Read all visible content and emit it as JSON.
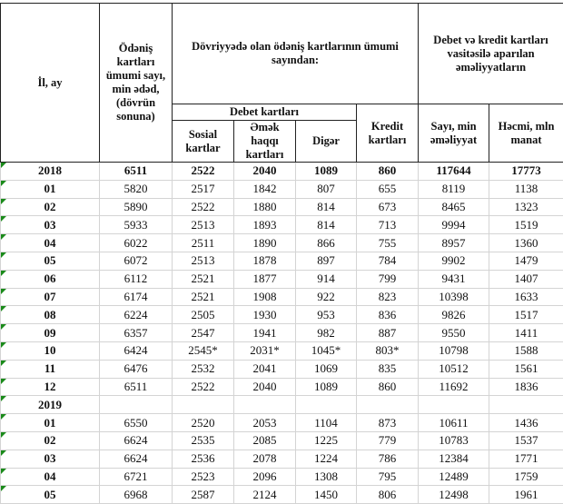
{
  "header": {
    "year_month": "İl, ay",
    "total_cards": "Ödəniş kartları ümumi sayı, min ədəd, (dövrün sonuna)",
    "of_total": "Dövriyyədə olan ödəniş kartlarının ümumi sayından:",
    "operations": "Debet və kredit  kartları vasitəsilə aparılan əməliyyatların",
    "debit_cards": "Debet kartları",
    "social": "Sosial kartlar",
    "salary": "Əmək haqqı kartları",
    "other": "Digər",
    "credit": "Kredit kartları",
    "count": "Sayı, min əməliyyat",
    "volume": "Həcmi, mln manat"
  },
  "rows": [
    {
      "label": "2018",
      "v": [
        "6511",
        "2522",
        "2040",
        "1089",
        "860",
        "117644",
        "17773"
      ],
      "year": true
    },
    {
      "label": "01",
      "v": [
        "5820",
        "2517",
        "1842",
        "807",
        "655",
        "8119",
        "1138"
      ]
    },
    {
      "label": "02",
      "v": [
        "5890",
        "2522",
        "1880",
        "814",
        "673",
        "8465",
        "1323"
      ]
    },
    {
      "label": "03",
      "v": [
        "5933",
        "2513",
        "1893",
        "814",
        "713",
        "9994",
        "1519"
      ]
    },
    {
      "label": "04",
      "v": [
        "6022",
        "2511",
        "1890",
        "866",
        "755",
        "8957",
        "1360"
      ]
    },
    {
      "label": "05",
      "v": [
        "6072",
        "2513",
        "1878",
        "897",
        "784",
        "9902",
        "1479"
      ]
    },
    {
      "label": "06",
      "v": [
        "6112",
        "2521",
        "1877",
        "914",
        "799",
        "9431",
        "1407"
      ]
    },
    {
      "label": "07",
      "v": [
        "6174",
        "2521",
        "1908",
        "922",
        "823",
        "10398",
        "1633"
      ]
    },
    {
      "label": "08",
      "v": [
        "6224",
        "2505",
        "1930",
        "953",
        "836",
        "9826",
        "1517"
      ]
    },
    {
      "label": "09",
      "v": [
        "6357",
        "2547",
        "1941",
        "982",
        "887",
        "9550",
        "1411"
      ]
    },
    {
      "label": "10",
      "v": [
        "6424",
        "2545*",
        "2031*",
        "1045*",
        "803*",
        "10798",
        "1588"
      ]
    },
    {
      "label": "11",
      "v": [
        "6476",
        "2532",
        "2041",
        "1069",
        "835",
        "10512",
        "1561"
      ]
    },
    {
      "label": "12",
      "v": [
        "6511",
        "2522",
        "2040",
        "1089",
        "860",
        "11692",
        "1836"
      ]
    },
    {
      "label": "2019",
      "v": [
        "",
        "",
        "",
        "",
        "",
        "",
        ""
      ],
      "header_only": true
    },
    {
      "label": "01",
      "v": [
        "6550",
        "2520",
        "2053",
        "1104",
        "873",
        "10611",
        "1436"
      ]
    },
    {
      "label": "02",
      "v": [
        "6624",
        "2535",
        "2085",
        "1225",
        "779",
        "10783",
        "1537"
      ]
    },
    {
      "label": "03",
      "v": [
        "6624",
        "2536",
        "2078",
        "1224",
        "786",
        "12384",
        "1771"
      ]
    },
    {
      "label": "04",
      "v": [
        "6721",
        "2523",
        "2096",
        "1308",
        "795",
        "12489",
        "1759"
      ]
    },
    {
      "label": "05",
      "v": [
        "6968",
        "2587",
        "2124",
        "1450",
        "806",
        "12498",
        "1961"
      ]
    }
  ]
}
